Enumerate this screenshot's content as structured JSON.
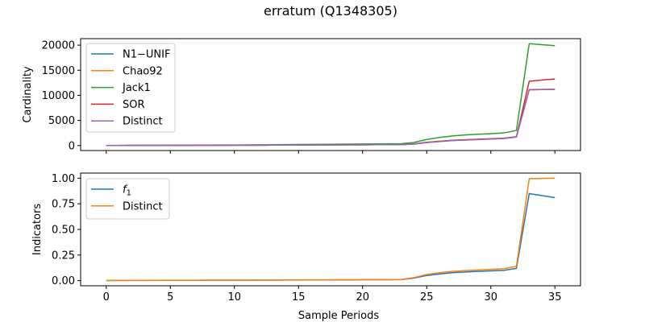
{
  "figure": {
    "title": "erratum (Q1348305)"
  },
  "chart_data": [
    {
      "type": "line",
      "ylabel": "Cardinality",
      "xlabel": "",
      "xlim": [
        -2,
        37
      ],
      "ylim": [
        -1000,
        21300
      ],
      "xticks": [
        0,
        5,
        10,
        15,
        20,
        25,
        30,
        35
      ],
      "xtick_labels_visible": false,
      "yticks": [
        0,
        5000,
        10000,
        15000,
        20000
      ],
      "ytick_labels": [
        "0",
        "5000",
        "10000",
        "15000",
        "20000"
      ],
      "grid": false,
      "legend_position": "upper-left",
      "x": [
        0,
        1,
        2,
        3,
        4,
        5,
        6,
        7,
        8,
        9,
        10,
        11,
        12,
        13,
        14,
        15,
        16,
        17,
        18,
        19,
        20,
        21,
        22,
        23,
        24,
        25,
        26,
        27,
        28,
        29,
        30,
        31,
        32,
        33,
        34,
        35
      ],
      "series": [
        {
          "name": "N1−UNIF",
          "color": "#1f77b4",
          "values": [
            5,
            10,
            15,
            20,
            25,
            30,
            35,
            40,
            45,
            50,
            55,
            60,
            70,
            80,
            90,
            100,
            110,
            120,
            130,
            140,
            150,
            160,
            170,
            180,
            300,
            600,
            800,
            1000,
            1100,
            1200,
            1300,
            1400,
            1700,
            11100,
            11150,
            11200
          ]
        },
        {
          "name": "Chao92",
          "color": "#ff7f0e",
          "values": [
            5,
            10,
            15,
            20,
            25,
            30,
            35,
            40,
            45,
            50,
            55,
            60,
            70,
            80,
            90,
            100,
            110,
            120,
            130,
            140,
            150,
            160,
            170,
            180,
            300,
            620,
            820,
            1020,
            1120,
            1220,
            1320,
            1420,
            1720,
            11150,
            11180,
            11200
          ]
        },
        {
          "name": "Jack1",
          "color": "#2ca02c",
          "values": [
            10,
            20,
            30,
            40,
            50,
            60,
            70,
            80,
            90,
            100,
            110,
            120,
            140,
            160,
            180,
            200,
            220,
            240,
            260,
            280,
            300,
            320,
            340,
            360,
            600,
            1200,
            1600,
            1900,
            2100,
            2250,
            2350,
            2500,
            3000,
            20300,
            20100,
            19900
          ]
        },
        {
          "name": "SOR",
          "color": "#d62728",
          "values": [
            5,
            10,
            15,
            20,
            25,
            30,
            35,
            40,
            45,
            50,
            55,
            60,
            70,
            80,
            90,
            100,
            110,
            120,
            130,
            140,
            150,
            160,
            170,
            180,
            310,
            650,
            850,
            1050,
            1150,
            1250,
            1350,
            1450,
            1750,
            12800,
            13050,
            13250
          ]
        },
        {
          "name": "Distinct",
          "color": "#9467bd",
          "values": [
            5,
            10,
            15,
            20,
            25,
            30,
            35,
            40,
            45,
            50,
            55,
            60,
            70,
            80,
            90,
            100,
            110,
            120,
            130,
            140,
            150,
            160,
            170,
            180,
            290,
            590,
            790,
            990,
            1090,
            1190,
            1290,
            1390,
            1690,
            11150,
            11180,
            11200
          ]
        }
      ]
    },
    {
      "type": "line",
      "ylabel": "Indicators",
      "xlabel": "Sample Periods",
      "xlim": [
        -2,
        37
      ],
      "ylim": [
        -0.05,
        1.05
      ],
      "xticks": [
        0,
        5,
        10,
        15,
        20,
        25,
        30,
        35
      ],
      "xtick_labels": [
        "0",
        "5",
        "10",
        "15",
        "20",
        "25",
        "30",
        "35"
      ],
      "yticks": [
        0.0,
        0.25,
        0.5,
        0.75,
        1.0
      ],
      "ytick_labels": [
        "0.00",
        "0.25",
        "0.50",
        "0.75",
        "1.00"
      ],
      "grid": false,
      "legend_position": "upper-left",
      "x": [
        0,
        1,
        2,
        3,
        4,
        5,
        6,
        7,
        8,
        9,
        10,
        11,
        12,
        13,
        14,
        15,
        16,
        17,
        18,
        19,
        20,
        21,
        22,
        23,
        24,
        25,
        26,
        27,
        28,
        29,
        30,
        31,
        32,
        33,
        34,
        35
      ],
      "series": [
        {
          "name": "f1",
          "label_text": "f",
          "label_sub": "1",
          "color": "#1f77b4",
          "values": [
            0.001,
            0.002,
            0.002,
            0.002,
            0.003,
            0.003,
            0.003,
            0.003,
            0.004,
            0.004,
            0.004,
            0.004,
            0.005,
            0.005,
            0.006,
            0.006,
            0.007,
            0.007,
            0.008,
            0.008,
            0.009,
            0.009,
            0.009,
            0.01,
            0.025,
            0.05,
            0.065,
            0.078,
            0.085,
            0.09,
            0.095,
            0.1,
            0.12,
            0.85,
            0.83,
            0.81
          ]
        },
        {
          "name": "Distinct",
          "label_text": "Distinct",
          "label_sub": "",
          "color": "#ff7f0e",
          "values": [
            0.002,
            0.002,
            0.003,
            0.003,
            0.003,
            0.004,
            0.004,
            0.004,
            0.005,
            0.005,
            0.005,
            0.005,
            0.006,
            0.006,
            0.007,
            0.007,
            0.008,
            0.008,
            0.009,
            0.009,
            0.01,
            0.01,
            0.01,
            0.011,
            0.03,
            0.06,
            0.078,
            0.09,
            0.098,
            0.104,
            0.11,
            0.116,
            0.14,
            0.995,
            0.998,
            1.0
          ]
        }
      ]
    }
  ]
}
